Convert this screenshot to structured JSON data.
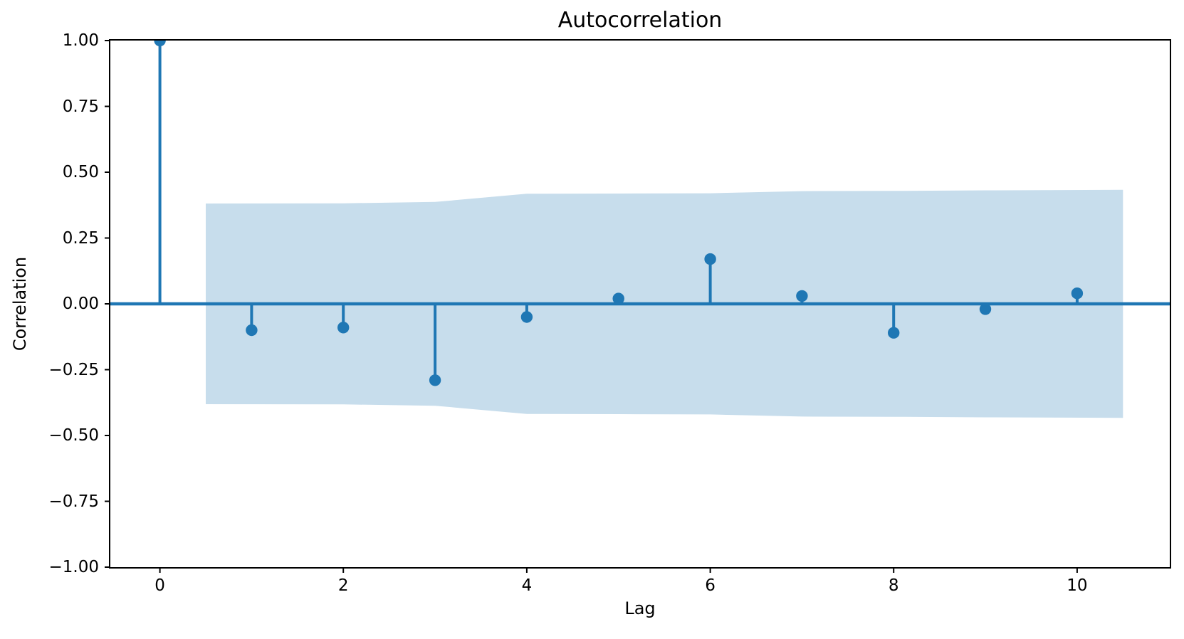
{
  "figure": {
    "title": "Autocorrelation",
    "xlabel": "Lag",
    "ylabel": "Correlation"
  },
  "chart_data": {
    "type": "stem",
    "title": "Autocorrelation",
    "xlabel": "Lag",
    "ylabel": "Correlation",
    "x": [
      0,
      1,
      2,
      3,
      4,
      5,
      6,
      7,
      8,
      9,
      10
    ],
    "values": [
      1.0,
      -0.1,
      -0.09,
      -0.29,
      -0.05,
      0.02,
      0.17,
      0.03,
      -0.11,
      -0.02,
      0.04
    ],
    "xlim": [
      -0.54,
      11.01
    ],
    "ylim": [
      -1.0,
      1.0
    ],
    "xticks": [
      0,
      2,
      4,
      6,
      8,
      10
    ],
    "xtick_labels": [
      "0",
      "2",
      "4",
      "6",
      "8",
      "10"
    ],
    "yticks": [
      1.0,
      0.75,
      0.5,
      0.25,
      0.0,
      -0.25,
      -0.5,
      -0.75,
      -1.0
    ],
    "ytick_labels": [
      "1.00",
      "0.75",
      "0.50",
      "0.25",
      "0.00",
      "−0.25",
      "−0.50",
      "−0.75",
      "−1.00"
    ],
    "confidence_band": {
      "x": [
        0.5,
        2,
        3,
        4,
        5,
        6,
        7,
        8,
        9,
        10.5
      ],
      "upper": [
        0.381,
        0.382,
        0.387,
        0.418,
        0.419,
        0.42,
        0.428,
        0.429,
        0.431,
        0.433
      ],
      "lower": [
        -0.381,
        -0.382,
        -0.387,
        -0.418,
        -0.419,
        -0.42,
        -0.428,
        -0.429,
        -0.431,
        -0.433
      ]
    },
    "colors": {
      "series": "#1f77b4",
      "band": "#c7ddec",
      "axis": "#000000"
    },
    "grid": false,
    "legend": null
  }
}
